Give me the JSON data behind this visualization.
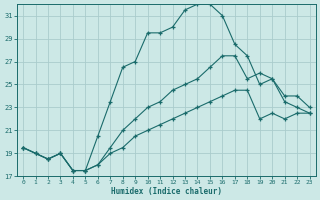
{
  "xlabel": "Humidex (Indice chaleur)",
  "bg_color": "#cce8e6",
  "grid_color": "#aacccc",
  "line_color": "#1a6b6b",
  "xlim": [
    -0.5,
    23.5
  ],
  "ylim": [
    17,
    32
  ],
  "yticks": [
    17,
    19,
    21,
    23,
    25,
    27,
    29,
    31
  ],
  "xticks": [
    0,
    1,
    2,
    3,
    4,
    5,
    6,
    7,
    8,
    9,
    10,
    11,
    12,
    13,
    14,
    15,
    16,
    17,
    18,
    19,
    20,
    21,
    22,
    23
  ],
  "curve1_x": [
    0,
    1,
    2,
    3,
    4,
    5,
    6,
    7,
    8,
    9,
    10,
    11,
    12,
    13,
    14,
    15,
    16,
    17,
    18,
    19,
    20,
    21,
    22,
    23
  ],
  "curve1_y": [
    19.5,
    19.0,
    18.5,
    19.0,
    17.5,
    17.5,
    20.5,
    23.5,
    26.5,
    27.0,
    29.5,
    29.5,
    30.0,
    31.5,
    32.0,
    32.0,
    31.0,
    28.5,
    27.5,
    25.0,
    25.5,
    23.5,
    23.0,
    22.5
  ],
  "curve2_x": [
    0,
    1,
    2,
    3,
    4,
    5,
    6,
    7,
    8,
    9,
    10,
    11,
    12,
    13,
    14,
    15,
    16,
    17,
    18,
    19,
    20,
    21,
    22,
    23
  ],
  "curve2_y": [
    19.5,
    19.0,
    18.5,
    19.0,
    17.5,
    17.5,
    18.0,
    19.5,
    21.0,
    22.0,
    23.0,
    23.5,
    24.5,
    25.0,
    25.5,
    26.5,
    27.5,
    27.5,
    25.5,
    26.0,
    25.5,
    24.0,
    24.0,
    23.0
  ],
  "curve3_x": [
    0,
    1,
    2,
    3,
    4,
    5,
    6,
    7,
    8,
    9,
    10,
    11,
    12,
    13,
    14,
    15,
    16,
    17,
    18,
    19,
    20,
    21,
    22,
    23
  ],
  "curve3_y": [
    19.5,
    19.0,
    18.5,
    19.0,
    17.5,
    17.5,
    18.0,
    19.0,
    19.5,
    20.5,
    21.0,
    21.5,
    22.0,
    22.5,
    23.0,
    23.5,
    24.0,
    24.5,
    24.5,
    22.0,
    22.5,
    22.0,
    22.5,
    22.5
  ]
}
